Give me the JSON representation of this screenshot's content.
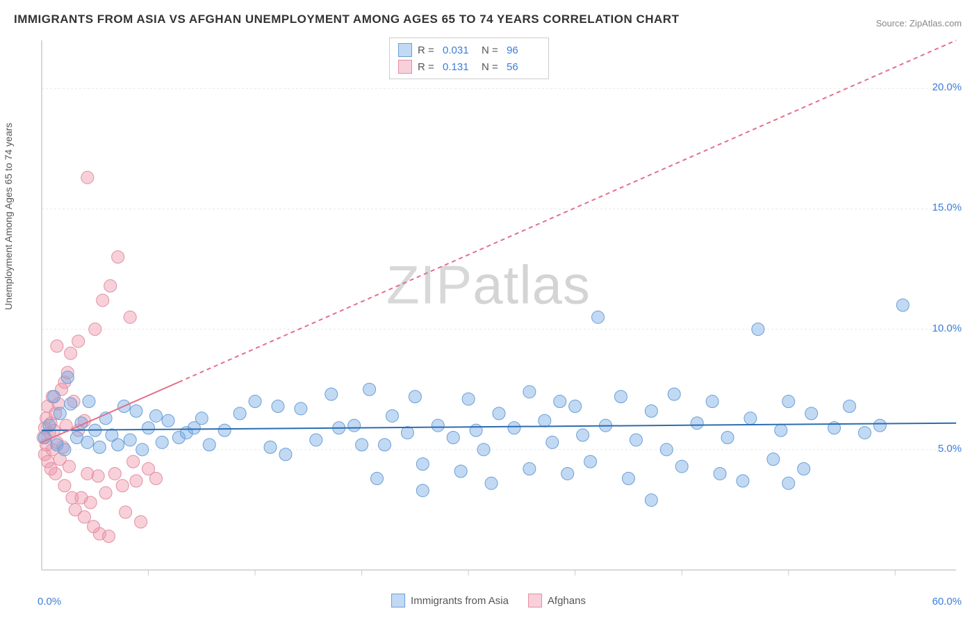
{
  "title": "IMMIGRANTS FROM ASIA VS AFGHAN UNEMPLOYMENT AMONG AGES 65 TO 74 YEARS CORRELATION CHART",
  "source": "Source: ZipAtlas.com",
  "watermark_a": "ZIP",
  "watermark_b": "atlas",
  "y_axis_label": "Unemployment Among Ages 65 to 74 years",
  "chart": {
    "type": "scatter",
    "background_color": "#ffffff",
    "grid_color": "#e8e8e8",
    "axis_color": "#cccccc",
    "xlim": [
      0,
      60
    ],
    "ylim": [
      0,
      22
    ],
    "x_ticks": [
      0,
      7,
      14,
      21,
      28,
      35,
      42,
      49,
      56
    ],
    "y_ticks": [
      5,
      10,
      15,
      20
    ],
    "y_tick_labels": [
      "5.0%",
      "10.0%",
      "15.0%",
      "20.0%"
    ],
    "x_origin_label": "0.0%",
    "x_max_label": "60.0%",
    "series": [
      {
        "name": "Immigrants from Asia",
        "color_fill": "rgba(120,170,230,0.45)",
        "color_stroke": "#6a9fd4",
        "r_value": "0.031",
        "n_value": "96",
        "trend": {
          "x1": 0,
          "y1": 5.8,
          "x2": 60,
          "y2": 6.1,
          "color": "#2b6cb0",
          "width": 2,
          "dash": "none"
        },
        "marker_r": 9,
        "points": [
          [
            0.5,
            6.0
          ],
          [
            0.8,
            7.2
          ],
          [
            1.0,
            5.2
          ],
          [
            1.2,
            6.5
          ],
          [
            1.5,
            5.0
          ],
          [
            1.9,
            6.9
          ],
          [
            2.3,
            5.5
          ],
          [
            2.6,
            6.1
          ],
          [
            3.0,
            5.3
          ],
          [
            3.1,
            7.0
          ],
          [
            3.5,
            5.8
          ],
          [
            3.8,
            5.1
          ],
          [
            4.2,
            6.3
          ],
          [
            4.6,
            5.6
          ],
          [
            5.0,
            5.2
          ],
          [
            5.4,
            6.8
          ],
          [
            5.8,
            5.4
          ],
          [
            6.2,
            6.6
          ],
          [
            6.6,
            5.0
          ],
          [
            7.0,
            5.9
          ],
          [
            7.5,
            6.4
          ],
          [
            7.9,
            5.3
          ],
          [
            8.3,
            6.2
          ],
          [
            9.0,
            5.5
          ],
          [
            9.5,
            5.7
          ],
          [
            10.0,
            5.9
          ],
          [
            10.5,
            6.3
          ],
          [
            11.0,
            5.2
          ],
          [
            12.0,
            5.8
          ],
          [
            13.0,
            6.5
          ],
          [
            14.0,
            7.0
          ],
          [
            15.0,
            5.1
          ],
          [
            15.5,
            6.8
          ],
          [
            16.0,
            4.8
          ],
          [
            17.0,
            6.7
          ],
          [
            18.0,
            5.4
          ],
          [
            19.0,
            7.3
          ],
          [
            19.5,
            5.9
          ],
          [
            20.5,
            6.0
          ],
          [
            21.0,
            5.2
          ],
          [
            21.5,
            7.5
          ],
          [
            22.0,
            3.8
          ],
          [
            22.5,
            5.2
          ],
          [
            23.0,
            6.4
          ],
          [
            24.0,
            5.7
          ],
          [
            24.5,
            7.2
          ],
          [
            25.0,
            4.4
          ],
          [
            25.0,
            3.3
          ],
          [
            26.0,
            6.0
          ],
          [
            27.0,
            5.5
          ],
          [
            27.5,
            4.1
          ],
          [
            28.0,
            7.1
          ],
          [
            28.5,
            5.8
          ],
          [
            29.0,
            5.0
          ],
          [
            29.5,
            3.6
          ],
          [
            30.0,
            6.5
          ],
          [
            31.0,
            5.9
          ],
          [
            32.0,
            7.4
          ],
          [
            32.0,
            4.2
          ],
          [
            33.0,
            6.2
          ],
          [
            33.5,
            5.3
          ],
          [
            34.0,
            7.0
          ],
          [
            34.5,
            4.0
          ],
          [
            35.0,
            6.8
          ],
          [
            35.5,
            5.6
          ],
          [
            36.0,
            4.5
          ],
          [
            36.5,
            10.5
          ],
          [
            37.0,
            6.0
          ],
          [
            38.0,
            7.2
          ],
          [
            38.5,
            3.8
          ],
          [
            39.0,
            5.4
          ],
          [
            40.0,
            6.6
          ],
          [
            40.0,
            2.9
          ],
          [
            41.0,
            5.0
          ],
          [
            41.5,
            7.3
          ],
          [
            42.0,
            4.3
          ],
          [
            43.0,
            6.1
          ],
          [
            44.0,
            7.0
          ],
          [
            44.5,
            4.0
          ],
          [
            45.0,
            5.5
          ],
          [
            46.0,
            3.7
          ],
          [
            46.5,
            6.3
          ],
          [
            47.0,
            10.0
          ],
          [
            48.0,
            4.6
          ],
          [
            48.5,
            5.8
          ],
          [
            49.0,
            3.6
          ],
          [
            49.0,
            7.0
          ],
          [
            50.0,
            4.2
          ],
          [
            50.5,
            6.5
          ],
          [
            52.0,
            5.9
          ],
          [
            53.0,
            6.8
          ],
          [
            54.0,
            5.7
          ],
          [
            55.0,
            6.0
          ],
          [
            56.5,
            11.0
          ],
          [
            0.2,
            5.5
          ],
          [
            1.7,
            8.0
          ]
        ]
      },
      {
        "name": "Afghans",
        "color_fill": "rgba(240,150,170,0.45)",
        "color_stroke": "#e08fa3",
        "r_value": "0.131",
        "n_value": "56",
        "trend": {
          "x1": 0,
          "y1": 5.3,
          "x2": 60,
          "y2": 22.0,
          "color": "#e36f8a",
          "width": 2,
          "solid_until_x": 9
        },
        "marker_r": 9,
        "points": [
          [
            0.1,
            5.5
          ],
          [
            0.2,
            5.9
          ],
          [
            0.2,
            4.8
          ],
          [
            0.3,
            6.3
          ],
          [
            0.3,
            5.2
          ],
          [
            0.4,
            6.8
          ],
          [
            0.4,
            4.5
          ],
          [
            0.5,
            5.7
          ],
          [
            0.6,
            6.1
          ],
          [
            0.6,
            4.2
          ],
          [
            0.7,
            7.2
          ],
          [
            0.7,
            5.0
          ],
          [
            0.8,
            5.8
          ],
          [
            0.9,
            6.5
          ],
          [
            0.9,
            4.0
          ],
          [
            1.0,
            5.3
          ],
          [
            1.0,
            9.3
          ],
          [
            1.1,
            6.9
          ],
          [
            1.2,
            4.6
          ],
          [
            1.3,
            7.5
          ],
          [
            1.4,
            5.1
          ],
          [
            1.5,
            7.8
          ],
          [
            1.5,
            3.5
          ],
          [
            1.6,
            6.0
          ],
          [
            1.7,
            8.2
          ],
          [
            1.8,
            4.3
          ],
          [
            1.9,
            9.0
          ],
          [
            2.0,
            3.0
          ],
          [
            2.1,
            7.0
          ],
          [
            2.2,
            2.5
          ],
          [
            2.4,
            5.8
          ],
          [
            2.4,
            9.5
          ],
          [
            2.6,
            3.0
          ],
          [
            2.8,
            6.2
          ],
          [
            2.8,
            2.2
          ],
          [
            3.0,
            4.0
          ],
          [
            3.0,
            16.3
          ],
          [
            3.2,
            2.8
          ],
          [
            3.4,
            1.8
          ],
          [
            3.5,
            10.0
          ],
          [
            3.7,
            3.9
          ],
          [
            3.8,
            1.5
          ],
          [
            4.0,
            11.2
          ],
          [
            4.2,
            3.2
          ],
          [
            4.4,
            1.4
          ],
          [
            4.5,
            11.8
          ],
          [
            4.8,
            4.0
          ],
          [
            5.0,
            13.0
          ],
          [
            5.3,
            3.5
          ],
          [
            5.5,
            2.4
          ],
          [
            5.8,
            10.5
          ],
          [
            6.0,
            4.5
          ],
          [
            6.2,
            3.7
          ],
          [
            6.5,
            2.0
          ],
          [
            7.0,
            4.2
          ],
          [
            7.5,
            3.8
          ]
        ]
      }
    ]
  },
  "legend_top": {
    "rows": [
      {
        "swatch_fill": "rgba(120,170,230,0.45)",
        "swatch_stroke": "#6a9fd4",
        "r": "0.031",
        "n": "96"
      },
      {
        "swatch_fill": "rgba(240,150,170,0.45)",
        "swatch_stroke": "#e08fa3",
        "r": "0.131",
        "n": "56"
      }
    ],
    "r_label": "R =",
    "n_label": "N ="
  },
  "legend_bottom": [
    {
      "swatch_fill": "rgba(120,170,230,0.45)",
      "swatch_stroke": "#6a9fd4",
      "label": "Immigrants from Asia"
    },
    {
      "swatch_fill": "rgba(240,150,170,0.45)",
      "swatch_stroke": "#e08fa3",
      "label": "Afghans"
    }
  ]
}
